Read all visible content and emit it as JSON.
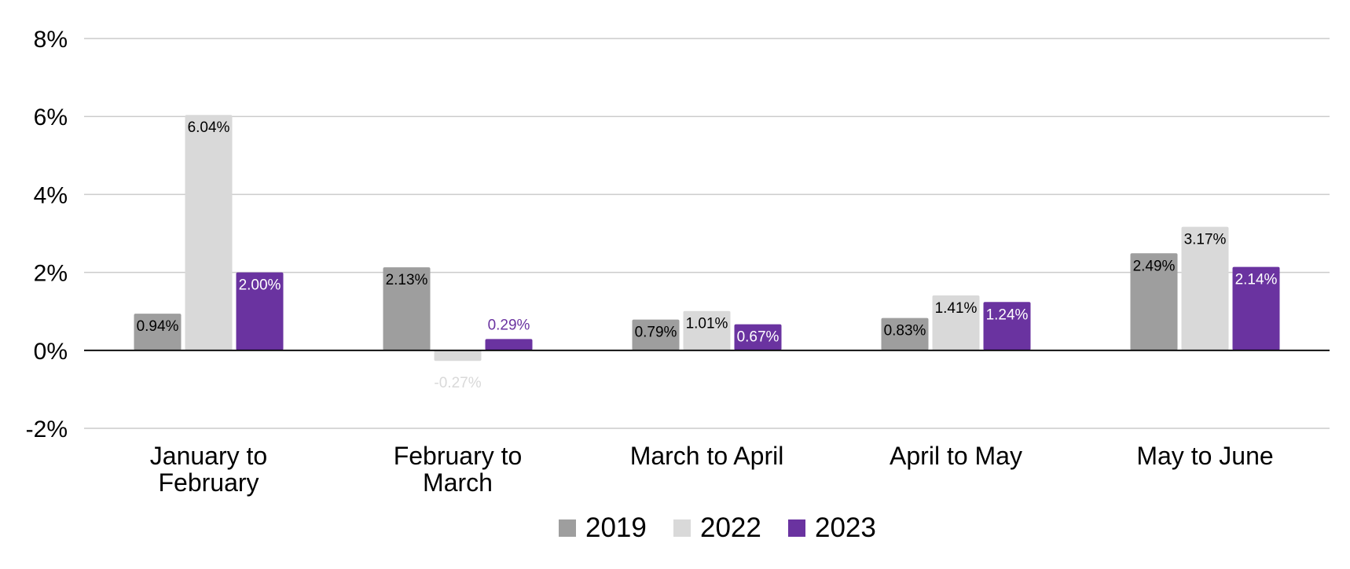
{
  "chart_data": {
    "type": "bar",
    "categories": [
      "January to February",
      "February to March",
      "March to April",
      "April to May",
      "May to June"
    ],
    "series": [
      {
        "name": "2019",
        "color": "#9e9e9e",
        "values": [
          0.94,
          2.13,
          0.79,
          0.83,
          2.49
        ],
        "labels": [
          "0.94%",
          "2.13%",
          "0.79%",
          "0.83%",
          "2.49%"
        ]
      },
      {
        "name": "2022",
        "color": "#d9d9d9",
        "values": [
          6.04,
          -0.27,
          1.01,
          1.41,
          3.17
        ],
        "labels": [
          "6.04%",
          "-0.27%",
          "1.01%",
          "1.41%",
          "3.17%"
        ]
      },
      {
        "name": "2023",
        "color": "#6a33a0",
        "values": [
          2.0,
          0.29,
          0.67,
          1.24,
          2.14
        ],
        "labels": [
          "2.00%",
          "0.29%",
          "0.67%",
          "1.24%",
          "2.14%"
        ]
      }
    ],
    "y_ticks": [
      -2,
      0,
      2,
      4,
      6,
      8
    ],
    "y_tick_labels": [
      "-2%",
      "0%",
      "2%",
      "4%",
      "6%",
      "8%"
    ],
    "ylim": [
      -2,
      8
    ],
    "grid": true,
    "legend_position": "bottom-center",
    "title": "",
    "xlabel": "",
    "ylabel": ""
  }
}
